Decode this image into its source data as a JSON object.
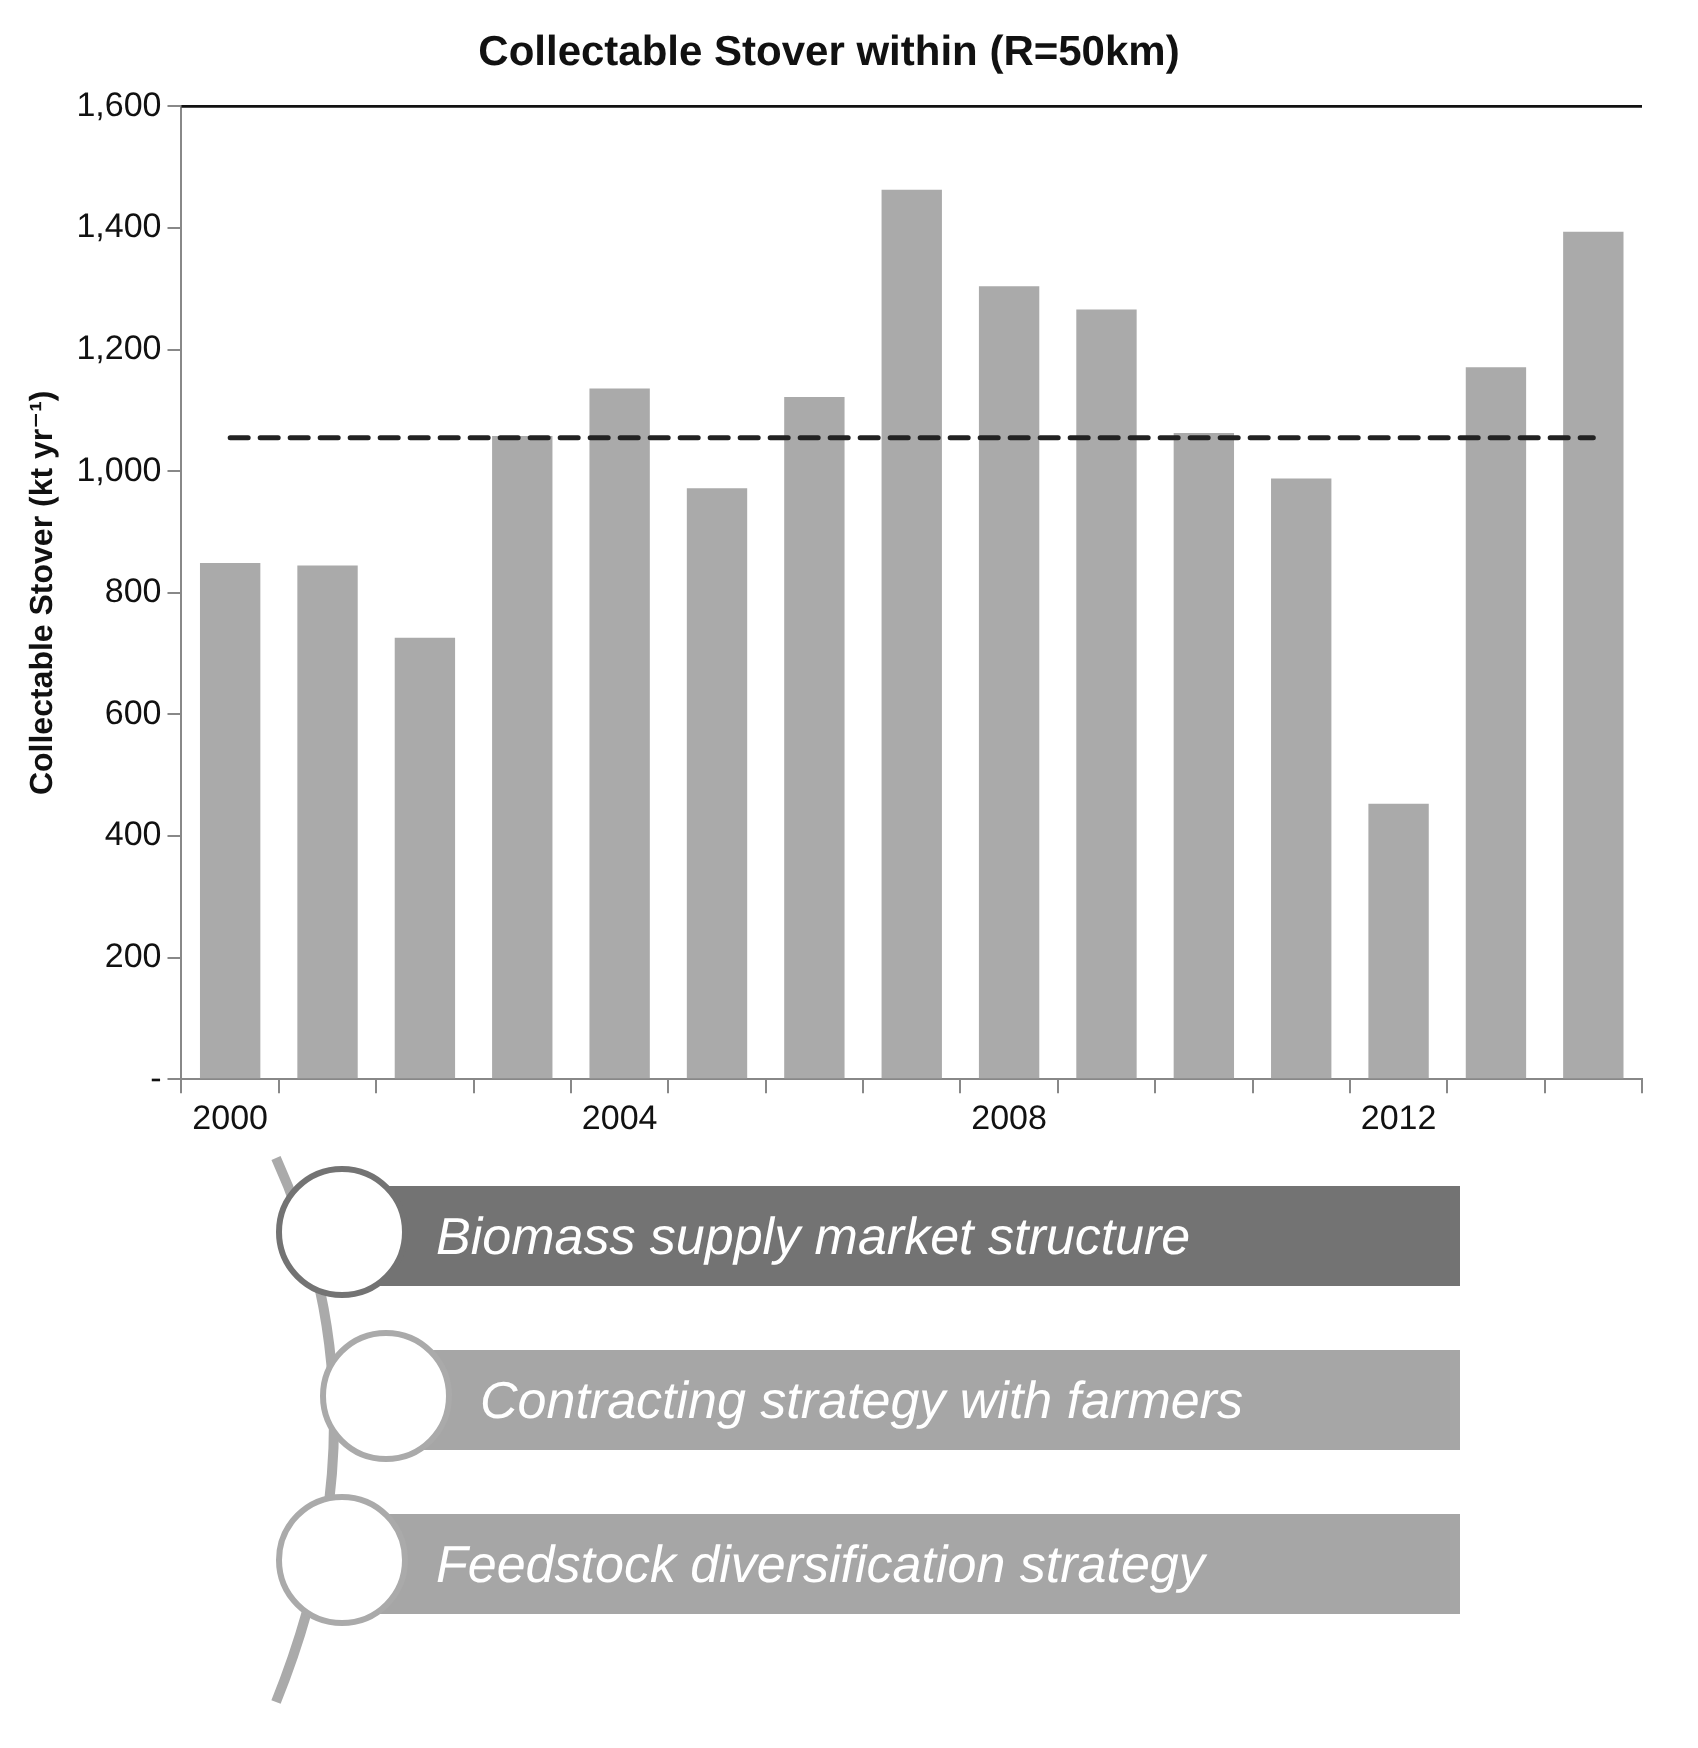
{
  "chart_data": {
    "type": "bar",
    "title": "Collectable Stover within (R=50km)",
    "ylabel": "Collectable Stover (kt yr⁻¹)",
    "categories": [
      "2000",
      null,
      null,
      null,
      "2004",
      null,
      null,
      null,
      "2008",
      null,
      null,
      null,
      "2012",
      null,
      null
    ],
    "values": [
      849,
      845,
      726,
      1058,
      1136,
      972,
      1122,
      1463,
      1304,
      1266,
      1063,
      988,
      453,
      1171,
      1394
    ],
    "color": "#aaaaaa",
    "ylim": [
      0,
      1600
    ],
    "yticks": [
      {
        "value": 0,
        "label": "-"
      },
      200,
      400,
      600,
      800,
      {
        "value": 1000,
        "label": "1,000"
      },
      {
        "value": 1200,
        "label": "1,200"
      },
      {
        "value": 1400,
        "label": "1,400"
      },
      {
        "value": 1600,
        "label": "1,600"
      }
    ],
    "ref_lines": [
      {
        "axis": "y",
        "value": 1055,
        "color": "#222222",
        "line_style": "dashed"
      }
    ],
    "legend": false,
    "annotations": [
      "Biomass supply market structure",
      "Contracting strategy with farmers",
      "Feedstock diversification strategy"
    ]
  }
}
